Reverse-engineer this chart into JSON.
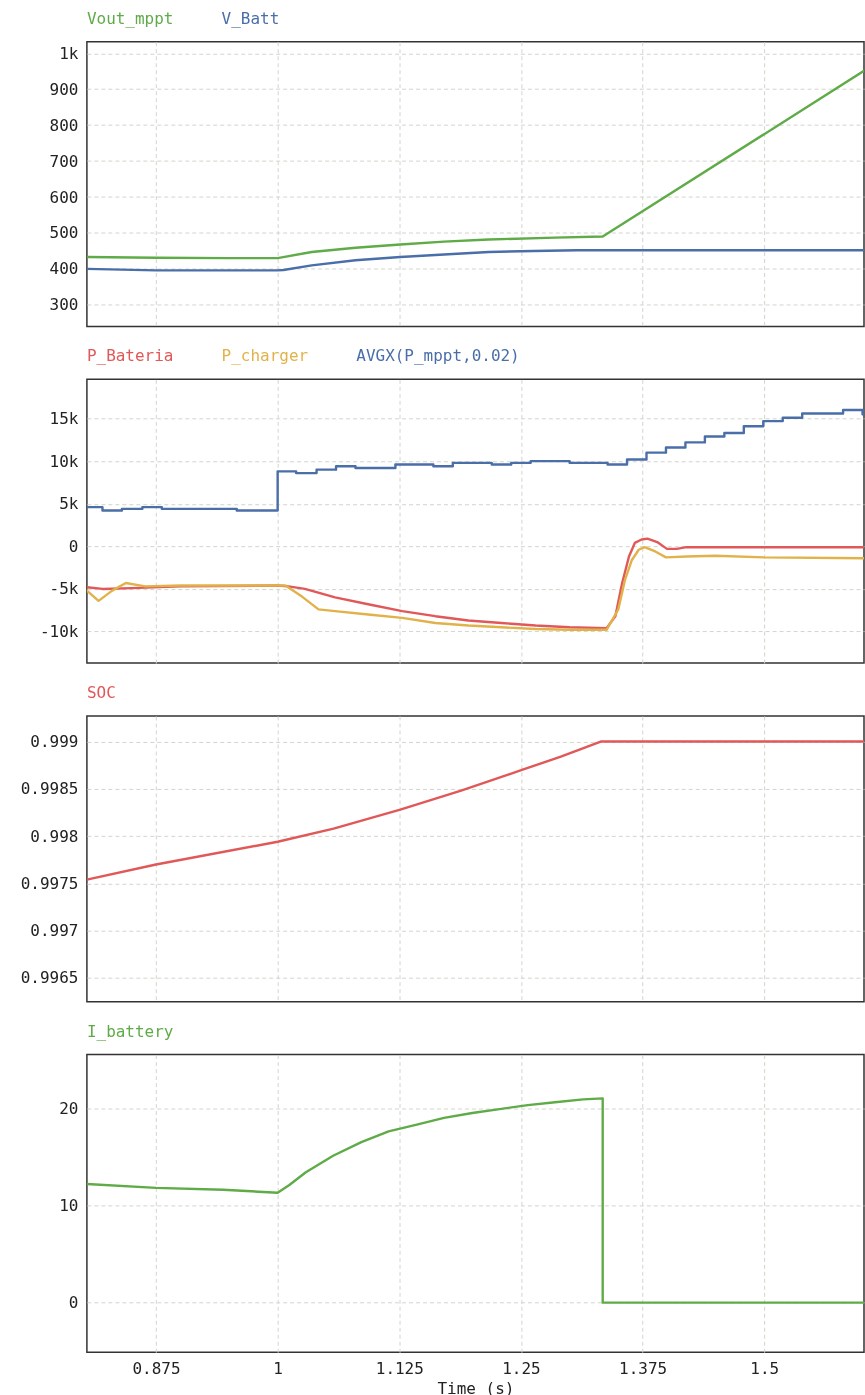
{
  "chart_data": [
    {
      "type": "line",
      "legend": "top left",
      "grid": true,
      "tick_labels": "y",
      "xlim": [
        0.804,
        1.6025
      ],
      "xticks": [
        0.875,
        1,
        1.125,
        1.25,
        1.375,
        1.5
      ],
      "ylim": [
        240,
        1032
      ],
      "yticks": [
        {
          "value": 1000,
          "label": "1k"
        },
        900,
        800,
        700,
        600,
        500,
        400,
        300
      ],
      "series": [
        {
          "name": "Vout_mppt",
          "color": "#5fab48",
          "x": [
            0.804,
            0.875,
            0.95,
            1.0,
            1.035,
            1.08,
            1.126,
            1.171,
            1.217,
            1.285,
            1.334,
            1.6025
          ],
          "values": [
            433,
            431,
            430,
            430,
            447,
            459,
            468,
            476,
            482,
            487,
            490,
            951
          ]
        },
        {
          "name": "V_Batt",
          "color": "#4a6ea8",
          "x": [
            0.804,
            0.875,
            1.0,
            1.006,
            1.035,
            1.08,
            1.126,
            1.171,
            1.217,
            1.263,
            1.308,
            1.6025
          ],
          "values": [
            400,
            396,
            396,
            397,
            410,
            424,
            433,
            440,
            447,
            450,
            452,
            452
          ]
        }
      ]
    },
    {
      "type": "line",
      "legend": "top left",
      "grid": true,
      "tick_labels": "y",
      "xlim": [
        0.804,
        1.6025
      ],
      "xticks": [
        0.875,
        1,
        1.125,
        1.25,
        1.375,
        1.5
      ],
      "ylim": [
        -13700,
        19600
      ],
      "yticks": [
        {
          "value": 15000,
          "label": "15k"
        },
        {
          "value": 10000,
          "label": "10k"
        },
        {
          "value": 5000,
          "label": "5k"
        },
        0,
        {
          "value": -5000,
          "label": "-5k"
        },
        {
          "value": -10000,
          "label": "-10k"
        }
      ],
      "series": [
        {
          "name": "P_Bateria",
          "color": "#e05858",
          "x": [
            0.804,
            0.82,
            0.85,
            0.9,
            1.0,
            1.011,
            1.028,
            1.059,
            1.093,
            1.128,
            1.162,
            1.196,
            1.23,
            1.265,
            1.3,
            1.338,
            1.347,
            1.354,
            1.361,
            1.367,
            1.374,
            1.38,
            1.39,
            1.4,
            1.41,
            1.42,
            1.6025
          ],
          "values": [
            -4800,
            -5000,
            -4900,
            -4700,
            -4600,
            -4700,
            -5000,
            -6000,
            -6800,
            -7600,
            -8200,
            -8700,
            -9000,
            -9300,
            -9500,
            -9600,
            -8200,
            -4300,
            -1200,
            400,
            800,
            900,
            500,
            -300,
            -300,
            -100,
            -100
          ]
        },
        {
          "name": "P_charger",
          "color": "#e2b24a",
          "x": [
            0.804,
            0.816,
            0.83,
            0.844,
            0.864,
            0.9,
            1.0,
            1.008,
            1.025,
            1.042,
            1.059,
            1.093,
            1.128,
            1.162,
            1.196,
            1.23,
            1.265,
            1.3,
            1.338,
            1.35,
            1.357,
            1.364,
            1.371,
            1.377,
            1.388,
            1.399,
            1.42,
            1.45,
            1.5,
            1.6025
          ],
          "values": [
            -5200,
            -6400,
            -5200,
            -4300,
            -4700,
            -4600,
            -4600,
            -4600,
            -5900,
            -7400,
            -7600,
            -8000,
            -8400,
            -9000,
            -9300,
            -9500,
            -9700,
            -9800,
            -9800,
            -7400,
            -3900,
            -1600,
            -400,
            -100,
            -600,
            -1300,
            -1200,
            -1100,
            -1300,
            -1400
          ]
        },
        {
          "name": "AVGX(P_mppt,0.02)",
          "color": "#4a6ea8",
          "type": "step",
          "x": [
            0.804,
            0.82,
            0.84,
            0.861,
            0.881,
            0.958,
            1.0,
            1.019,
            1.04,
            1.06,
            1.08,
            1.121,
            1.16,
            1.18,
            1.22,
            1.24,
            1.26,
            1.3,
            1.339,
            1.359,
            1.379,
            1.399,
            1.419,
            1.439,
            1.459,
            1.479,
            1.499,
            1.519,
            1.539,
            1.581,
            1.601,
            1.6025
          ],
          "values": [
            4600,
            4200,
            4400,
            4600,
            4400,
            4200,
            8800,
            8600,
            9000,
            9400,
            9200,
            9600,
            9400,
            9800,
            9600,
            9800,
            10000,
            9800,
            9600,
            10200,
            11000,
            11600,
            12200,
            12900,
            13300,
            14100,
            14700,
            15100,
            15600,
            16000,
            15500,
            15500
          ]
        }
      ]
    },
    {
      "type": "line",
      "legend": "top left",
      "grid": true,
      "tick_labels": "y",
      "xlim": [
        0.804,
        1.6025
      ],
      "xticks": [
        0.875,
        1,
        1.125,
        1.25,
        1.375,
        1.5
      ],
      "ylim": [
        0.99625,
        0.99927
      ],
      "yticks": [
        0.999,
        0.9985,
        0.998,
        0.9975,
        0.997,
        0.9965
      ],
      "series": [
        {
          "name": "SOC",
          "color": "#e05858",
          "x": [
            0.804,
            0.875,
            1.0,
            1.0575,
            1.126,
            1.1885,
            1.251,
            1.291,
            1.332,
            1.6025
          ],
          "values": [
            0.99754,
            0.9977,
            0.99794,
            0.99808,
            0.99828,
            0.99848,
            0.9987,
            0.99884,
            0.999,
            0.999
          ]
        }
      ]
    },
    {
      "type": "line",
      "legend": "top left",
      "grid": true,
      "xlabel": "Time (s)",
      "xlim": [
        0.804,
        1.6025
      ],
      "xticks": [
        0.875,
        1,
        1.125,
        1.25,
        1.375,
        1.5
      ],
      "ylim": [
        -5.1,
        25.5
      ],
      "yticks": [
        20,
        10,
        0
      ],
      "series": [
        {
          "name": "I_battery",
          "color": "#5fab48",
          "x": [
            0.804,
            0.875,
            0.944,
            1.0,
            1.012,
            1.029,
            1.057,
            1.086,
            1.114,
            1.143,
            1.171,
            1.2,
            1.228,
            1.257,
            1.285,
            1.314,
            1.334,
            1.334,
            1.6025
          ],
          "values": [
            12.2,
            11.8,
            11.6,
            11.3,
            12.1,
            13.4,
            15.1,
            16.5,
            17.6,
            18.3,
            19.0,
            19.5,
            19.9,
            20.3,
            20.6,
            20.9,
            21,
            0,
            0
          ]
        }
      ]
    }
  ]
}
